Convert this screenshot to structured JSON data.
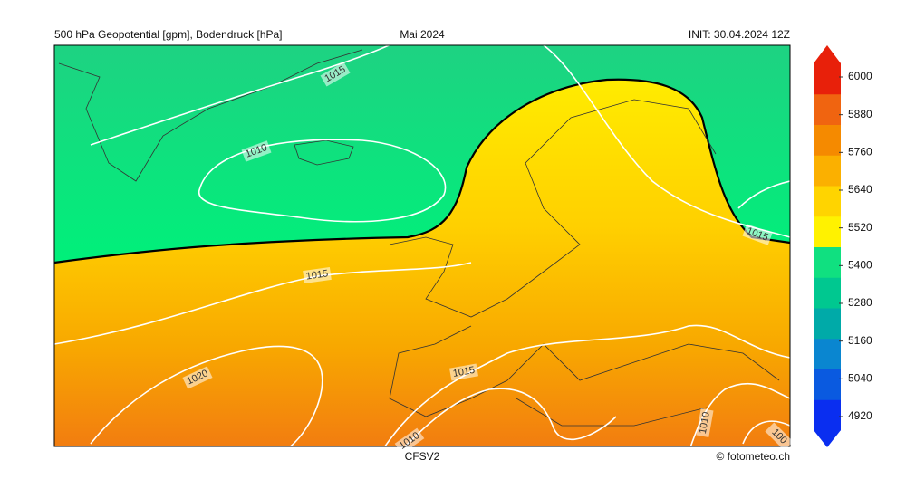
{
  "header": {
    "left": "500 hPa Geopotential [gpm], Bodendruck [hPa]",
    "center": "Mai 2024",
    "right": "INIT: 30.04.2024 12Z"
  },
  "footer": {
    "model": "CFSV2",
    "credit": "© fotometeo.ch"
  },
  "colorbar": {
    "ticks": [
      4920,
      5040,
      5160,
      5280,
      5400,
      5520,
      5640,
      5760,
      5880,
      6000
    ],
    "lim": [
      4920,
      6000
    ]
  },
  "isobar_labels": [
    "1015",
    "1010",
    "1015",
    "1020",
    "1015",
    "1010",
    "1010",
    "1015",
    "100"
  ]
}
